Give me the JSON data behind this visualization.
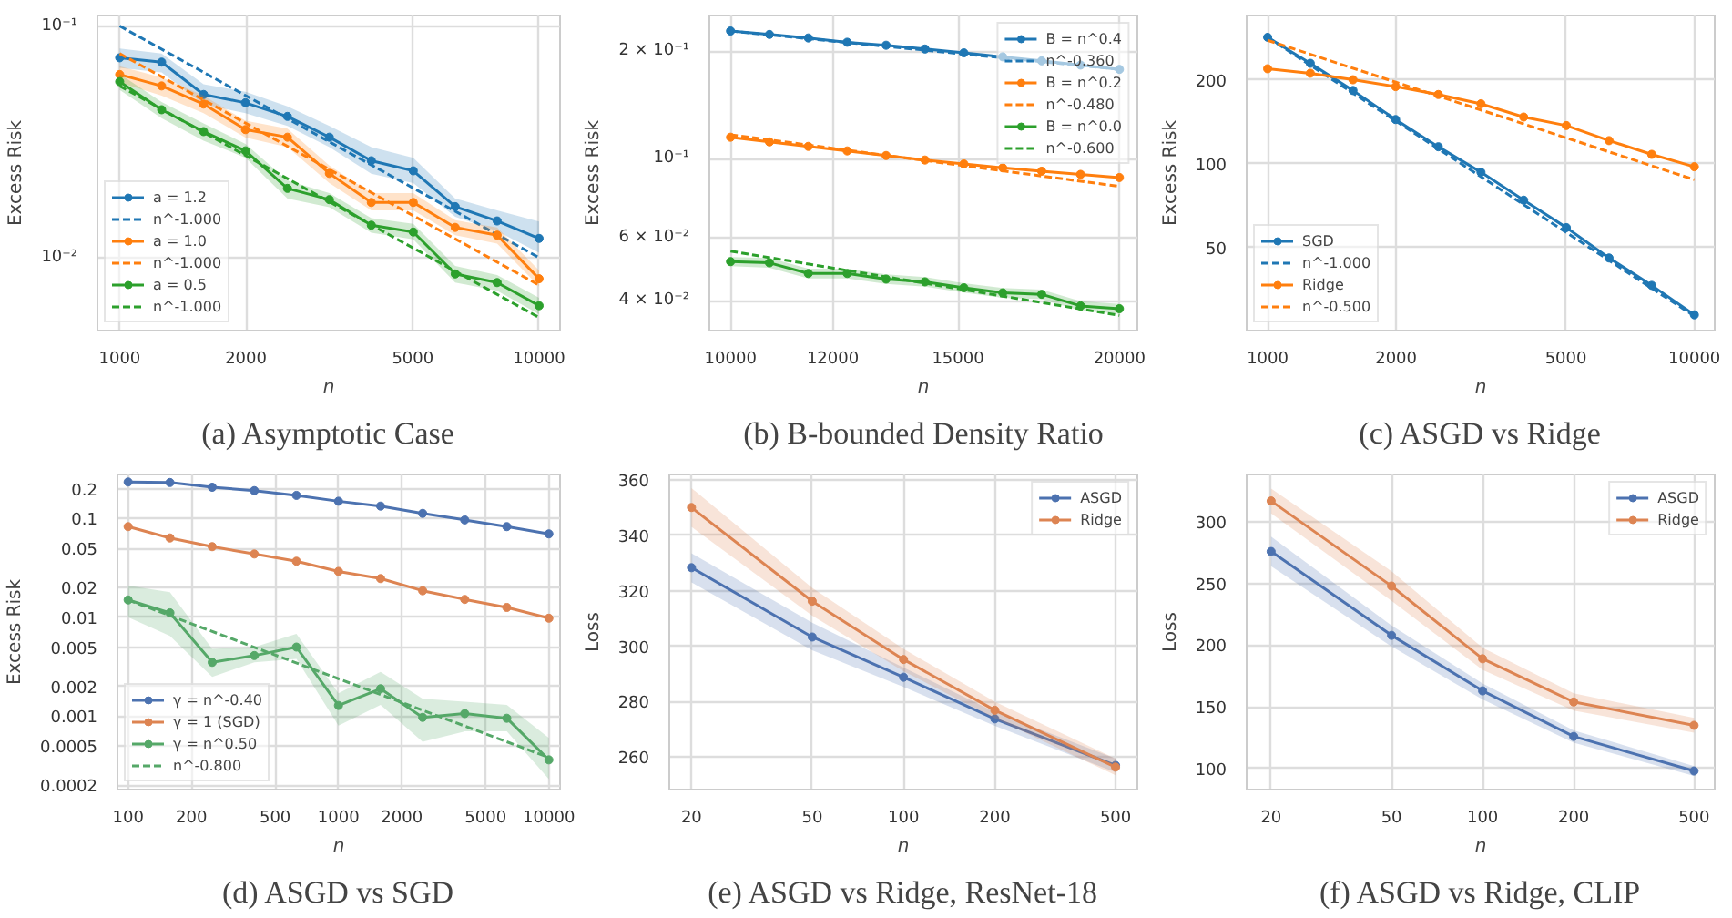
{
  "chart_data": [
    {
      "type": "line",
      "title": "(a) Asymptotic Case",
      "xlabel": "n",
      "ylabel": "Excess Risk",
      "log": "xy",
      "grid": true,
      "legend": "bottom left",
      "xlim": [
        885,
        11220
      ],
      "ylim": [
        0.00484,
        0.111
      ],
      "xticks": [
        1000,
        2000,
        5000,
        10000
      ],
      "yticks": [
        {
          "value": 0.1,
          "label": "10⁻¹"
        },
        {
          "value": 0.01,
          "label": "10⁻²"
        }
      ],
      "x": [
        1000,
        1259,
        1585,
        1995,
        2512,
        3162,
        3981,
        5012,
        6310,
        7943,
        10000
      ],
      "series": [
        {
          "name": "a = 1.2",
          "color": "#1f77b4",
          "marker": "circle",
          "line_style": "solid",
          "values": [
            0.0729,
            0.0698,
            0.0506,
            0.0466,
            0.0407,
            0.0331,
            0.0262,
            0.0237,
            0.0166,
            0.0144,
            0.0121
          ],
          "lower": [
            0.066,
            0.063,
            0.046,
            0.042,
            0.037,
            0.03,
            0.023,
            0.021,
            0.015,
            0.013,
            0.0105
          ],
          "upper": [
            0.08,
            0.076,
            0.056,
            0.052,
            0.045,
            0.037,
            0.03,
            0.027,
            0.018,
            0.016,
            0.0143
          ]
        },
        {
          "name": "n^-1.000",
          "color": "#1f77b4",
          "marker": "none",
          "line_style": "dashed",
          "x": [
            1000,
            10000
          ],
          "values": [
            0.1,
            0.01
          ]
        },
        {
          "name": "a = 1.0",
          "color": "#ff7f0e",
          "marker": "circle",
          "line_style": "solid",
          "values": [
            0.0617,
            0.0551,
            0.046,
            0.0357,
            0.0331,
            0.0231,
            0.0173,
            0.0173,
            0.0135,
            0.0125,
            0.0081
          ],
          "lower": [
            0.057,
            0.05,
            0.042,
            0.033,
            0.03,
            0.021,
            0.016,
            0.016,
            0.0125,
            0.0115,
            0.0075
          ],
          "upper": [
            0.067,
            0.06,
            0.05,
            0.039,
            0.036,
            0.025,
            0.019,
            0.019,
            0.0145,
            0.0135,
            0.0088
          ]
        },
        {
          "name": "n^-1.000",
          "color": "#ff7f0e",
          "marker": "none",
          "line_style": "dashed",
          "x": [
            1000,
            10000
          ],
          "values": [
            0.076,
            0.0076
          ]
        },
        {
          "name": "a = 0.5",
          "color": "#2ca02c",
          "marker": "circle",
          "line_style": "solid",
          "values": [
            0.0575,
            0.0435,
            0.035,
            0.0289,
            0.0199,
            0.0178,
            0.0138,
            0.0129,
            0.0085,
            0.0078,
            0.0062
          ],
          "lower": [
            0.053,
            0.04,
            0.032,
            0.027,
            0.018,
            0.0165,
            0.0128,
            0.012,
            0.0078,
            0.0072,
            0.0057
          ],
          "upper": [
            0.062,
            0.047,
            0.038,
            0.031,
            0.0215,
            0.019,
            0.0148,
            0.014,
            0.0092,
            0.0084,
            0.0067
          ]
        },
        {
          "name": "n^-1.000",
          "color": "#2ca02c",
          "marker": "none",
          "line_style": "dashed",
          "x": [
            1000,
            10000
          ],
          "values": [
            0.0551,
            0.00551
          ]
        }
      ]
    },
    {
      "type": "line",
      "title": "(b) B-bounded Density Ratio",
      "xlabel": "n",
      "ylabel": "Excess Risk",
      "log": "xy",
      "grid": true,
      "legend": "top right",
      "xlim": [
        9630,
        20650
      ],
      "ylim": [
        0.033,
        0.252
      ],
      "xticks": [
        10000,
        12000,
        15000,
        20000
      ],
      "yticks": [
        {
          "value": 0.2,
          "label": "2 × 10⁻¹"
        },
        {
          "value": 0.1,
          "label": "10⁻¹"
        },
        {
          "value": 0.06,
          "label": "6 × 10⁻²"
        },
        {
          "value": 0.04,
          "label": "4 × 10⁻²"
        }
      ],
      "x": [
        10000,
        10718,
        11487,
        12311,
        13195,
        14142,
        15157,
        16245,
        17411,
        18661,
        20000
      ],
      "series": [
        {
          "name": "B = n^0.4",
          "color": "#1f77b4",
          "marker": "circle",
          "line_style": "solid",
          "values": [
            0.228,
            0.223,
            0.218,
            0.212,
            0.208,
            0.203,
            0.198,
            0.193,
            0.188,
            0.183,
            0.178
          ]
        },
        {
          "name": "n^-0.360",
          "color": "#1f77b4",
          "marker": "none",
          "line_style": "dashed",
          "x": [
            10000,
            20000
          ],
          "values": [
            0.228,
            0.178
          ]
        },
        {
          "name": "B = n^0.2",
          "color": "#ff7f0e",
          "marker": "circle",
          "line_style": "solid",
          "values": [
            0.1149,
            0.1115,
            0.1083,
            0.1052,
            0.1021,
            0.0992,
            0.0967,
            0.0943,
            0.0923,
            0.0904,
            0.0886
          ]
        },
        {
          "name": "n^-0.480",
          "color": "#ff7f0e",
          "marker": "none",
          "line_style": "dashed",
          "x": [
            10000,
            20000
          ],
          "values": [
            0.1168,
            0.0837
          ]
        },
        {
          "name": "B = n^0.0",
          "color": "#2ca02c",
          "marker": "circle",
          "line_style": "solid",
          "values": [
            0.0515,
            0.0511,
            0.0477,
            0.0477,
            0.046,
            0.0452,
            0.0435,
            0.0421,
            0.0417,
            0.0387,
            0.038
          ],
          "lower": [
            0.05,
            0.0495,
            0.0462,
            0.0462,
            0.0446,
            0.0438,
            0.0422,
            0.0408,
            0.0404,
            0.0375,
            0.0368
          ],
          "upper": [
            0.053,
            0.0527,
            0.0492,
            0.0492,
            0.0474,
            0.0466,
            0.0448,
            0.0434,
            0.043,
            0.0399,
            0.0392
          ]
        },
        {
          "name": "n^-0.600",
          "color": "#2ca02c",
          "marker": "none",
          "line_style": "dashed",
          "x": [
            10000,
            20000
          ],
          "values": [
            0.0551,
            0.0364
          ]
        }
      ]
    },
    {
      "type": "line",
      "title": "(c) ASGD vs Ridge",
      "xlabel": "n",
      "ylabel": "Excess Risk",
      "log": "xy",
      "grid": true,
      "legend": "bottom left",
      "xlim": [
        893,
        11160
      ],
      "ylim": [
        25.2,
        340
      ],
      "xticks": [
        1000,
        2000,
        5000,
        10000
      ],
      "yticks": [
        50,
        100,
        200
      ],
      "x": [
        1000,
        1259,
        1585,
        1995,
        2512,
        3162,
        3981,
        5012,
        6310,
        7943,
        10000
      ],
      "series": [
        {
          "name": "SGD",
          "color": "#1f77b4",
          "marker": "circle",
          "line_style": "solid",
          "values": [
            284,
            229,
            183,
            144,
            115,
            93.2,
            74,
            59,
            45.9,
            36.6,
            28.7
          ]
        },
        {
          "name": "n^-1.000",
          "color": "#1f77b4",
          "line_style": "dashed",
          "x": [
            1000,
            10000
          ],
          "values": [
            284,
            28.4
          ]
        },
        {
          "name": "Ridge",
          "color": "#ff7f0e",
          "marker": "circle",
          "line_style": "solid",
          "values": [
            219,
            211,
            200,
            189,
            177,
            164,
            147,
            137,
            121,
            108,
            97.5
          ]
        },
        {
          "name": "n^-0.500",
          "color": "#ff7f0e",
          "marker": "none",
          "line_style": "dashed",
          "x": [
            1000,
            10000
          ],
          "values": [
            277,
            87.6
          ]
        }
      ]
    },
    {
      "type": "line",
      "title": "(d) ASGD vs SGD",
      "xlabel": "n",
      "ylabel": "Excess Risk",
      "log": "xy",
      "grid": true,
      "legend": "bottom left",
      "xlim": [
        89,
        11300
      ],
      "ylim": [
        0.00018,
        0.28
      ],
      "xticks": [
        100,
        200,
        500,
        1000,
        2000,
        5000,
        10000
      ],
      "yticks": [
        0.2,
        0.1,
        0.05,
        0.02,
        0.01,
        0.005,
        0.002,
        0.001,
        0.0005,
        0.0002
      ],
      "x": [
        100,
        158,
        251,
        398,
        631,
        1000,
        1585,
        2512,
        3981,
        6310,
        10000
      ],
      "series": [
        {
          "name": "γ = n^-0.40",
          "color": "#4c72b0",
          "marker": "circle",
          "line_style": "solid",
          "values": [
            0.235,
            0.232,
            0.208,
            0.192,
            0.172,
            0.15,
            0.134,
            0.113,
            0.097,
            0.083,
            0.07
          ]
        },
        {
          "name": "γ = 1 (SGD)",
          "color": "#dd8452",
          "marker": "circle",
          "line_style": "solid",
          "values": [
            0.083,
            0.0637,
            0.052,
            0.0438,
            0.037,
            0.0292,
            0.0247,
            0.0186,
            0.0152,
            0.0126,
            0.0098
          ]
        },
        {
          "name": "γ = n^0.50",
          "color": "#55a868",
          "marker": "circle",
          "line_style": "solid",
          "values": [
            0.015,
            0.0111,
            0.0035,
            0.0041,
            0.005,
            0.00128,
            0.00189,
            0.00097,
            0.00106,
            0.00095,
            0.00036
          ],
          "lower": [
            0.01,
            0.0065,
            0.0025,
            0.0035,
            0.0038,
            0.0008,
            0.0013,
            0.00055,
            0.0007,
            0.0007,
            0.00023
          ],
          "upper": [
            0.021,
            0.018,
            0.0048,
            0.005,
            0.0068,
            0.0017,
            0.0028,
            0.0015,
            0.0014,
            0.0013,
            0.0006
          ]
        },
        {
          "name": "n^-0.800",
          "color": "#55a868",
          "marker": "none",
          "line_style": "dashed",
          "x": [
            100,
            10000
          ],
          "values": [
            0.015,
            0.00038
          ]
        }
      ]
    },
    {
      "type": "line",
      "title": "(e) ASGD vs Ridge, ResNet-18",
      "xlabel": "n",
      "ylabel": "Loss",
      "log": "x",
      "grid": true,
      "legend": "top right",
      "xlim": [
        16.9,
        590
      ],
      "ylim": [
        248.3,
        361.9
      ],
      "xticks": [
        20,
        50,
        100,
        200,
        500
      ],
      "yticks": [
        260,
        280,
        300,
        320,
        340,
        360
      ],
      "x": [
        20,
        50,
        100,
        200,
        500
      ],
      "series": [
        {
          "name": "ASGD",
          "color": "#4c72b0",
          "marker": "circle",
          "line_style": "solid",
          "values": [
            328.3,
            303.3,
            288.8,
            273.8,
            257
          ],
          "lower": [
            323,
            298.5,
            285.3,
            271.3,
            254.5
          ],
          "upper": [
            333.5,
            308.5,
            292.3,
            276.3,
            259.5
          ]
        },
        {
          "name": "Ridge",
          "color": "#dd8452",
          "marker": "circle",
          "line_style": "solid",
          "values": [
            350,
            316.2,
            295.2,
            276.9,
            256.4
          ],
          "lower": [
            343,
            311,
            291,
            274,
            253.5
          ],
          "upper": [
            357,
            321,
            299,
            280,
            259.5
          ]
        }
      ]
    },
    {
      "type": "line",
      "title": "(f) ASGD vs Ridge, CLIP",
      "xlabel": "n",
      "ylabel": "Loss",
      "log": "x",
      "grid": true,
      "legend": "top right",
      "xlim": [
        16.6,
        585
      ],
      "ylim": [
        82.9,
        338.5
      ],
      "xticks": [
        20,
        50,
        100,
        200,
        500
      ],
      "yticks": [
        100,
        150,
        200,
        250,
        300
      ],
      "x": [
        20,
        50,
        100,
        200,
        500
      ],
      "series": [
        {
          "name": "ASGD",
          "color": "#4c72b0",
          "marker": "circle",
          "line_style": "solid",
          "values": [
            276,
            208,
            163,
            126,
            98
          ],
          "lower": [
            264,
            199,
            156,
            121,
            94
          ],
          "upper": [
            288,
            216,
            169,
            131,
            102
          ]
        },
        {
          "name": "Ridge",
          "color": "#dd8452",
          "marker": "circle",
          "line_style": "solid",
          "values": [
            317,
            248,
            189,
            154,
            135
          ],
          "lower": [
            307,
            236,
            180,
            147,
            129
          ],
          "upper": [
            327,
            260,
            198,
            161,
            141
          ]
        }
      ]
    }
  ]
}
